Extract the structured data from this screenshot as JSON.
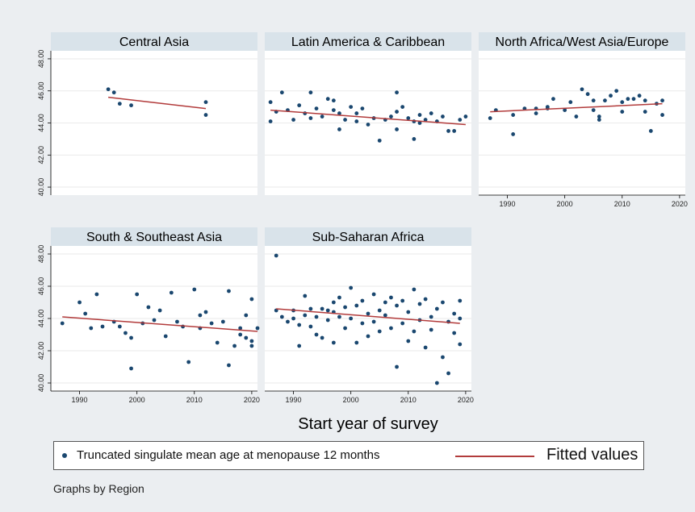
{
  "chart_data": {
    "type": "scatter",
    "xlabel": "Start year of survey",
    "xlim": [
      1985,
      2021
    ],
    "ylim": [
      39.5,
      48.5
    ],
    "xticks": [
      1990,
      2000,
      2010,
      2020
    ],
    "xtick_labels": [
      "1990",
      "2000",
      "2010",
      "2020"
    ],
    "yticks": [
      40,
      42,
      44,
      46,
      48
    ],
    "ytick_labels": [
      "40.00",
      "42.00",
      "44.00",
      "46.00",
      "48.00"
    ],
    "grid": true,
    "legend": {
      "position": "bottom",
      "entries": [
        {
          "label": "Truncated singulate mean age at menopause 12 months",
          "marker": "dot",
          "color": "#1a476f"
        },
        {
          "label": "Fitted values",
          "marker": "line",
          "color": "#b23b3b"
        }
      ]
    },
    "note": "Graphs by Region",
    "panels": [
      {
        "title": "Central Asia",
        "points": [
          [
            1995,
            46.1
          ],
          [
            1996,
            45.9
          ],
          [
            1997,
            45.2
          ],
          [
            1999,
            45.1
          ],
          [
            2012,
            45.3
          ],
          [
            2012,
            44.5
          ]
        ],
        "fit": [
          [
            1995,
            45.6
          ],
          [
            2012,
            44.9
          ]
        ]
      },
      {
        "title": "Latin America & Caribbean",
        "points": [
          [
            1986,
            45.3
          ],
          [
            1986,
            44.1
          ],
          [
            1987,
            44.7
          ],
          [
            1988,
            45.9
          ],
          [
            1989,
            44.8
          ],
          [
            1990,
            44.2
          ],
          [
            1991,
            45.1
          ],
          [
            1992,
            44.6
          ],
          [
            1993,
            45.9
          ],
          [
            1993,
            44.3
          ],
          [
            1994,
            44.9
          ],
          [
            1995,
            44.4
          ],
          [
            1996,
            45.5
          ],
          [
            1997,
            45.4
          ],
          [
            1997,
            44.8
          ],
          [
            1998,
            43.6
          ],
          [
            1998,
            44.6
          ],
          [
            1999,
            44.2
          ],
          [
            2000,
            45.0
          ],
          [
            2001,
            44.1
          ],
          [
            2001,
            44.6
          ],
          [
            2002,
            44.9
          ],
          [
            2003,
            43.9
          ],
          [
            2004,
            44.3
          ],
          [
            2005,
            42.9
          ],
          [
            2006,
            44.2
          ],
          [
            2007,
            44.4
          ],
          [
            2008,
            43.6
          ],
          [
            2008,
            44.7
          ],
          [
            2008,
            45.9
          ],
          [
            2009,
            45.0
          ],
          [
            2010,
            44.3
          ],
          [
            2011,
            43.0
          ],
          [
            2011,
            44.1
          ],
          [
            2012,
            44.5
          ],
          [
            2012,
            44.0
          ],
          [
            2013,
            44.2
          ],
          [
            2014,
            44.6
          ],
          [
            2015,
            44.1
          ],
          [
            2016,
            44.4
          ],
          [
            2017,
            43.5
          ],
          [
            2018,
            43.5
          ],
          [
            2019,
            44.2
          ],
          [
            2020,
            44.4
          ]
        ],
        "fit": [
          [
            1986,
            44.8
          ],
          [
            2020,
            43.9
          ]
        ]
      },
      {
        "title": "North Africa/West Asia/Europe",
        "points": [
          [
            1987,
            44.3
          ],
          [
            1988,
            44.8
          ],
          [
            1991,
            43.3
          ],
          [
            1991,
            44.5
          ],
          [
            1993,
            44.9
          ],
          [
            1995,
            44.9
          ],
          [
            1995,
            44.6
          ],
          [
            1997,
            44.9
          ],
          [
            1997,
            45.0
          ],
          [
            1998,
            45.5
          ],
          [
            2000,
            44.8
          ],
          [
            2001,
            45.3
          ],
          [
            2002,
            44.4
          ],
          [
            2003,
            46.1
          ],
          [
            2004,
            45.8
          ],
          [
            2005,
            44.8
          ],
          [
            2005,
            45.4
          ],
          [
            2006,
            44.4
          ],
          [
            2006,
            44.2
          ],
          [
            2007,
            45.4
          ],
          [
            2008,
            45.7
          ],
          [
            2009,
            46.0
          ],
          [
            2010,
            44.7
          ],
          [
            2010,
            45.3
          ],
          [
            2011,
            45.5
          ],
          [
            2012,
            45.5
          ],
          [
            2013,
            45.7
          ],
          [
            2014,
            45.4
          ],
          [
            2014,
            44.7
          ],
          [
            2015,
            43.5
          ],
          [
            2016,
            45.2
          ],
          [
            2017,
            45.4
          ],
          [
            2017,
            44.5
          ]
        ],
        "fit": [
          [
            1987,
            44.7
          ],
          [
            2017,
            45.2
          ]
        ]
      },
      {
        "title": "South & Southeast Asia",
        "points": [
          [
            1987,
            43.7
          ],
          [
            1990,
            45.0
          ],
          [
            1991,
            44.3
          ],
          [
            1992,
            43.4
          ],
          [
            1993,
            45.5
          ],
          [
            1994,
            43.5
          ],
          [
            1996,
            43.8
          ],
          [
            1997,
            43.5
          ],
          [
            1998,
            43.1
          ],
          [
            1999,
            42.8
          ],
          [
            1999,
            40.9
          ],
          [
            2000,
            45.5
          ],
          [
            2001,
            43.7
          ],
          [
            2002,
            44.7
          ],
          [
            2003,
            43.9
          ],
          [
            2004,
            44.5
          ],
          [
            2005,
            42.9
          ],
          [
            2006,
            45.6
          ],
          [
            2007,
            43.8
          ],
          [
            2008,
            43.5
          ],
          [
            2009,
            41.3
          ],
          [
            2010,
            45.8
          ],
          [
            2011,
            44.2
          ],
          [
            2011,
            43.4
          ],
          [
            2012,
            44.4
          ],
          [
            2013,
            43.7
          ],
          [
            2014,
            42.5
          ],
          [
            2015,
            43.8
          ],
          [
            2016,
            45.7
          ],
          [
            2016,
            41.1
          ],
          [
            2017,
            42.3
          ],
          [
            2018,
            43.4
          ],
          [
            2018,
            43.0
          ],
          [
            2019,
            42.8
          ],
          [
            2019,
            44.2
          ],
          [
            2020,
            45.2
          ],
          [
            2020,
            42.6
          ],
          [
            2020,
            42.3
          ],
          [
            2021,
            43.4
          ]
        ],
        "fit": [
          [
            1987,
            44.1
          ],
          [
            2021,
            43.2
          ]
        ]
      },
      {
        "title": "Sub-Saharan Africa",
        "points": [
          [
            1987,
            47.9
          ],
          [
            1987,
            44.5
          ],
          [
            1988,
            44.1
          ],
          [
            1989,
            43.8
          ],
          [
            1990,
            44.5
          ],
          [
            1990,
            44.0
          ],
          [
            1991,
            43.6
          ],
          [
            1991,
            42.3
          ],
          [
            1992,
            45.4
          ],
          [
            1992,
            44.2
          ],
          [
            1993,
            44.6
          ],
          [
            1993,
            43.5
          ],
          [
            1994,
            43.0
          ],
          [
            1994,
            44.1
          ],
          [
            1995,
            44.6
          ],
          [
            1995,
            42.8
          ],
          [
            1996,
            44.5
          ],
          [
            1996,
            43.9
          ],
          [
            1997,
            44.4
          ],
          [
            1997,
            45.0
          ],
          [
            1997,
            42.5
          ],
          [
            1998,
            45.3
          ],
          [
            1998,
            44.1
          ],
          [
            1999,
            44.7
          ],
          [
            1999,
            43.4
          ],
          [
            2000,
            45.9
          ],
          [
            2000,
            44.0
          ],
          [
            2001,
            44.8
          ],
          [
            2001,
            42.5
          ],
          [
            2002,
            45.1
          ],
          [
            2002,
            43.7
          ],
          [
            2003,
            44.3
          ],
          [
            2003,
            42.9
          ],
          [
            2004,
            45.5
          ],
          [
            2004,
            43.8
          ],
          [
            2005,
            44.5
          ],
          [
            2005,
            43.2
          ],
          [
            2006,
            45.0
          ],
          [
            2006,
            44.2
          ],
          [
            2007,
            45.3
          ],
          [
            2007,
            43.4
          ],
          [
            2008,
            44.8
          ],
          [
            2008,
            41.0
          ],
          [
            2009,
            45.1
          ],
          [
            2009,
            43.7
          ],
          [
            2010,
            44.4
          ],
          [
            2010,
            42.6
          ],
          [
            2011,
            45.8
          ],
          [
            2011,
            43.2
          ],
          [
            2012,
            44.9
          ],
          [
            2012,
            43.9
          ],
          [
            2013,
            45.2
          ],
          [
            2013,
            42.2
          ],
          [
            2014,
            44.1
          ],
          [
            2014,
            43.3
          ],
          [
            2015,
            44.6
          ],
          [
            2015,
            40.0
          ],
          [
            2016,
            45.0
          ],
          [
            2016,
            41.6
          ],
          [
            2017,
            43.8
          ],
          [
            2017,
            40.6
          ],
          [
            2018,
            44.3
          ],
          [
            2018,
            43.1
          ],
          [
            2019,
            45.1
          ],
          [
            2019,
            42.4
          ],
          [
            2019,
            44.0
          ]
        ],
        "fit": [
          [
            1987,
            44.6
          ],
          [
            2019,
            43.7
          ]
        ]
      }
    ]
  }
}
